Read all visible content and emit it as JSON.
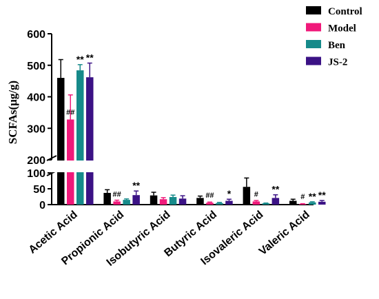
{
  "chart_data": {
    "type": "bar",
    "ylabel": "SCFAs(μg/g)",
    "y_axis": {
      "broken": true,
      "lower_segment": [
        0,
        100
      ],
      "upper_segment": [
        200,
        600
      ],
      "ticks_lower": [
        0,
        50,
        100
      ],
      "ticks_upper": [
        200,
        300,
        400,
        500,
        600
      ]
    },
    "categories": [
      "Acetic Acid",
      "Propionic Acid",
      "Isobutyric Acid",
      "Butyric Acid",
      "Isovaleric Acid",
      "Valeric Acid"
    ],
    "series": [
      {
        "name": "Control",
        "color": "#000000",
        "values": [
          460,
          37,
          29,
          21,
          56,
          12
        ],
        "errors": [
          58,
          10,
          10,
          6,
          28,
          5
        ],
        "significance": [
          "",
          "",
          "",
          "",
          "",
          ""
        ]
      },
      {
        "name": "Model",
        "color": "#f0197a",
        "values": [
          328,
          10,
          17,
          6,
          10,
          2
        ],
        "errors": [
          78,
          4,
          5,
          2,
          3,
          1
        ],
        "significance": [
          "##",
          "##",
          "",
          "##",
          "#",
          "#"
        ]
      },
      {
        "name": "Ben",
        "color": "#168a8a",
        "values": [
          484,
          15,
          24,
          5,
          4,
          7
        ],
        "errors": [
          18,
          3,
          6,
          2,
          1,
          2
        ],
        "significance": [
          "**",
          "",
          "",
          "",
          "",
          "**"
        ]
      },
      {
        "name": "JS-2",
        "color": "#3b1285",
        "values": [
          462,
          30,
          19,
          12,
          21,
          9
        ],
        "errors": [
          45,
          13,
          9,
          5,
          10,
          4
        ],
        "significance": [
          "**",
          "**",
          "",
          "*",
          "**",
          "**"
        ]
      }
    ]
  }
}
